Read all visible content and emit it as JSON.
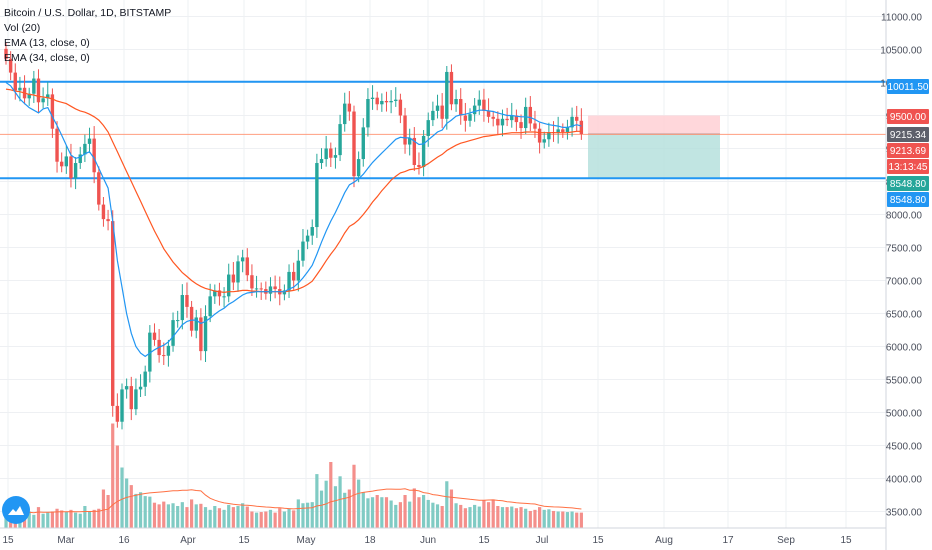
{
  "legend": {
    "title": "Bitcoin / U.S. Dollar, 1D, BITSTAMP",
    "vol": "Vol (20)",
    "ema13": "EMA (13, close, 0)",
    "ema34": "EMA (34, close, 0)"
  },
  "colors": {
    "up": "#26a69a",
    "down": "#ef5350",
    "ema13": "#2196f3",
    "ema34": "#ff5722",
    "hline": "#2196f3",
    "grid": "#eef0f3",
    "price_line": "#ff9e80",
    "target_zone": "#b2dfdb",
    "stop_zone": "#ffcdd2",
    "vol_up": "#80cbc4",
    "vol_down": "#f48f8b"
  },
  "chart_data": {
    "type": "candlestick",
    "title": "Bitcoin / U.S. Dollar, 1D, BITSTAMP",
    "x_ticks": [
      "15",
      "Mar",
      "16",
      "Apr",
      "15",
      "May",
      "18",
      "Jun",
      "15",
      "Jul",
      "15",
      "Aug",
      "17",
      "Sep",
      "15"
    ],
    "y_ticks": [
      3500,
      4000,
      4500,
      5000,
      5500,
      6000,
      6500,
      7000,
      7500,
      8000,
      8500,
      9000,
      9500,
      10000,
      10500,
      11000
    ],
    "y_tick_labels": [
      "3500.00",
      "4000.00",
      "4500.00",
      "5000.00",
      "5500.00",
      "6000.00",
      "6500.00",
      "7000.00",
      "7500.00",
      "8000.00",
      "8500.00",
      "9000.00",
      "9500.00",
      "10000.00",
      "10500.00",
      "11000.00"
    ],
    "ylim": [
      3250,
      11250
    ],
    "close_series": [
      10360,
      10150,
      9880,
      9920,
      9760,
      9830,
      10060,
      9700,
      9760,
      9820,
      9300,
      8800,
      8730,
      8880,
      8550,
      8780,
      8910,
      9070,
      9150,
      8640,
      8150,
      7930,
      7900,
      5100,
      4860,
      5350,
      5400,
      5050,
      5350,
      5390,
      5620,
      6210,
      6100,
      5870,
      5860,
      6010,
      6400,
      6400,
      6780,
      6600,
      6240,
      6440,
      5930,
      6460,
      6760,
      6850,
      6760,
      6760,
      7090,
      6970,
      7290,
      7350,
      7080,
      6880,
      6880,
      6870,
      6800,
      6910,
      6870,
      6790,
      6850,
      7130,
      7000,
      7300,
      7590,
      7680,
      7810,
      8780,
      8840,
      9000,
      8860,
      8900,
      9370,
      9680,
      9560,
      8580,
      8840,
      9320,
      9750,
      9770,
      9670,
      9720,
      9700,
      9720,
      9740,
      9500,
      9060,
      9160,
      8750,
      8720,
      9190,
      9430,
      9570,
      9650,
      9450,
      10160,
      9670,
      9750,
      9500,
      9420,
      9520,
      9650,
      9740,
      9570,
      9480,
      9450,
      9350,
      9450,
      9430,
      9500,
      9400,
      9310,
      9630,
      9380,
      9300,
      9090,
      9140,
      9250,
      9240,
      9290,
      9250,
      9320,
      9480,
      9420,
      9220
    ],
    "ema13_series": [
      10000,
      9950,
      9850,
      9750,
      9680,
      9620,
      9580,
      9540,
      9600,
      9620,
      9480,
      9350,
      9200,
      9050,
      8900,
      8850,
      8870,
      8920,
      8950,
      8850,
      8700,
      8550,
      8400,
      7900,
      7300,
      6900,
      6500,
      6200,
      6000,
      5900,
      5850,
      5900,
      5950,
      5990,
      6020,
      6070,
      6150,
      6240,
      6330,
      6380,
      6400,
      6400,
      6350,
      6380,
      6430,
      6490,
      6540,
      6580,
      6640,
      6680,
      6730,
      6780,
      6810,
      6820,
      6830,
      6830,
      6830,
      6830,
      6830,
      6830,
      6830,
      6870,
      6900,
      6960,
      7040,
      7130,
      7230,
      7400,
      7580,
      7750,
      7900,
      8030,
      8180,
      8330,
      8450,
      8490,
      8540,
      8610,
      8700,
      8790,
      8860,
      8930,
      9000,
      9070,
      9140,
      9170,
      9160,
      9160,
      9110,
      9060,
      9070,
      9130,
      9190,
      9250,
      9280,
      9380,
      9430,
      9490,
      9510,
      9520,
      9540,
      9560,
      9580,
      9580,
      9570,
      9560,
      9540,
      9520,
      9500,
      9500,
      9490,
      9480,
      9480,
      9470,
      9440,
      9400,
      9380,
      9360,
      9350,
      9340,
      9320,
      9320,
      9340,
      9360,
      9340
    ],
    "ema34_series": [
      9900,
      9890,
      9870,
      9860,
      9840,
      9820,
      9810,
      9790,
      9780,
      9770,
      9750,
      9720,
      9700,
      9680,
      9640,
      9600,
      9570,
      9550,
      9520,
      9480,
      9430,
      9350,
      9250,
      9100,
      8950,
      8800,
      8650,
      8500,
      8350,
      8200,
      8050,
      7900,
      7750,
      7620,
      7480,
      7380,
      7280,
      7200,
      7120,
      7060,
      7000,
      6950,
      6910,
      6880,
      6860,
      6840,
      6830,
      6820,
      6830,
      6830,
      6840,
      6850,
      6850,
      6840,
      6840,
      6830,
      6830,
      6830,
      6830,
      6830,
      6830,
      6840,
      6850,
      6870,
      6900,
      6940,
      6990,
      7090,
      7190,
      7300,
      7400,
      7490,
      7600,
      7720,
      7820,
      7860,
      7920,
      8000,
      8090,
      8190,
      8270,
      8360,
      8440,
      8520,
      8580,
      8630,
      8650,
      8680,
      8690,
      8700,
      8730,
      8770,
      8820,
      8870,
      8910,
      8970,
      9010,
      9050,
      9080,
      9100,
      9120,
      9140,
      9160,
      9180,
      9190,
      9200,
      9210,
      9220,
      9230,
      9240,
      9240,
      9240,
      9250,
      9250,
      9250,
      9240,
      9240,
      9240,
      9240,
      9240,
      9240,
      9240,
      9250,
      9260,
      9260
    ],
    "volume_series": [
      300,
      250,
      320,
      280,
      260,
      300,
      240,
      380,
      260,
      280,
      300,
      350,
      320,
      300,
      330,
      280,
      260,
      400,
      300,
      330,
      350,
      700,
      600,
      1900,
      1500,
      1100,
      900,
      780,
      620,
      650,
      580,
      570,
      460,
      430,
      480,
      430,
      450,
      400,
      470,
      380,
      520,
      430,
      440,
      380,
      330,
      400,
      360,
      330,
      420,
      380,
      400,
      450,
      390,
      300,
      280,
      290,
      300,
      330,
      280,
      360,
      300,
      350,
      320,
      520,
      450,
      460,
      470,
      980,
      680,
      860,
      1200,
      760,
      940,
      640,
      700,
      1150,
      880,
      650,
      540,
      560,
      600,
      560,
      560,
      500,
      420,
      470,
      600,
      480,
      720,
      560,
      600,
      510,
      460,
      430,
      400,
      850,
      700,
      450,
      420,
      360,
      380,
      420,
      390,
      500,
      470,
      520,
      400,
      380,
      380,
      390,
      360,
      380,
      350,
      310,
      330,
      380,
      330,
      340,
      310,
      300,
      300,
      290,
      300,
      280,
      280
    ],
    "horizontal_lines": [
      10011.5,
      8548.8
    ],
    "position_tool": {
      "entry": 9215.34,
      "target": 8548.8,
      "stop": 9500.0
    },
    "price_labels": [
      {
        "text": "10011.50",
        "kind": "line"
      },
      {
        "text": "9500.00",
        "kind": "stop"
      },
      {
        "text": "9215.34",
        "kind": "entry"
      },
      {
        "text": "9213.69",
        "kind": "last"
      },
      {
        "text": "13:13:45",
        "kind": "countdown"
      },
      {
        "text": "8548.80",
        "kind": "target"
      },
      {
        "text": "8548.80",
        "kind": "line"
      }
    ]
  }
}
